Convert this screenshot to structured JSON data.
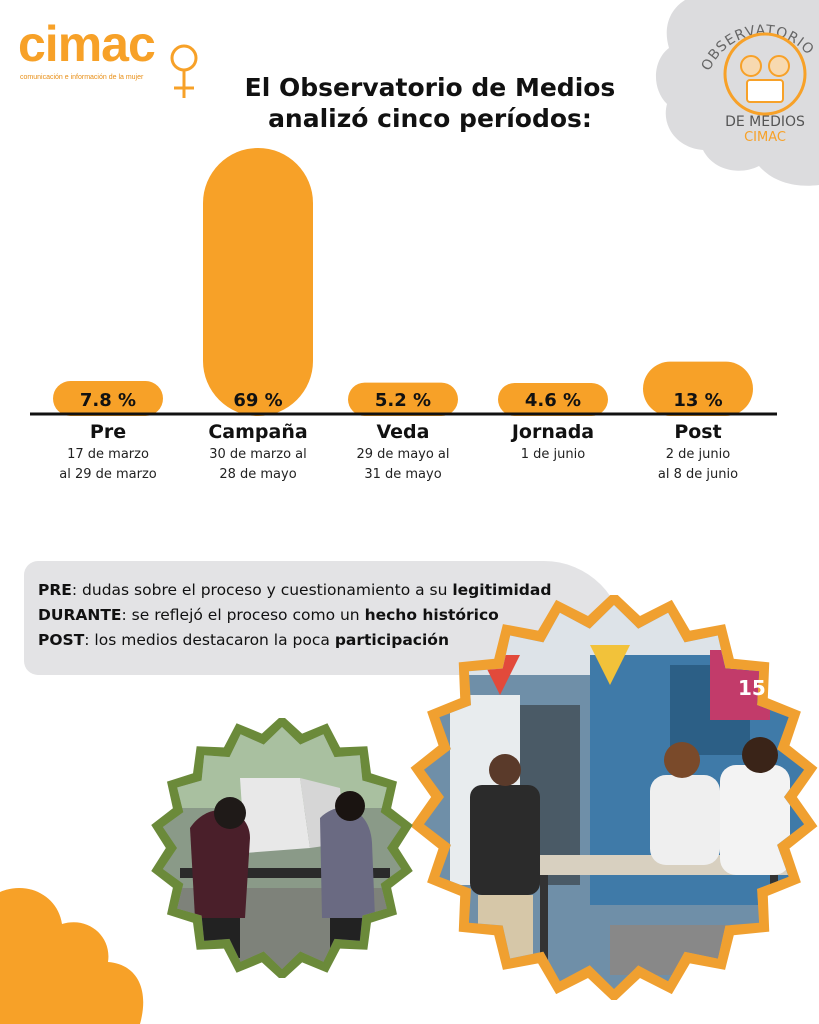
{
  "logo": {
    "name": "cimac",
    "tagline": "comunicación e información de la mujer"
  },
  "title": {
    "line1": "El Observatorio de Medios",
    "line2": "analizó cinco períodos:"
  },
  "badge": {
    "arc_text": "OBSERVATORIO",
    "line1": "DE MEDIOS",
    "line2": "CIMAC"
  },
  "chart_data": {
    "type": "bar",
    "categories": [
      "Pre",
      "Campaña",
      "Veda",
      "Jornada",
      "Post"
    ],
    "values": [
      7.8,
      69,
      5.2,
      4.6,
      13
    ],
    "value_labels": [
      "7.8 %",
      "69 %",
      "5.2 %",
      "4.6 %",
      "13 %"
    ],
    "date_ranges": [
      [
        "17 de marzo",
        "al 29 de marzo"
      ],
      [
        "30 de marzo al",
        "28 de mayo"
      ],
      [
        "29 de mayo al",
        "31 de mayo"
      ],
      [
        "1 de junio"
      ],
      [
        "2 de junio",
        "al 8 de junio"
      ]
    ],
    "title": "",
    "ylim": [
      0,
      69
    ],
    "grid": false,
    "legend": "none",
    "color": "#f7a128"
  },
  "statements": {
    "pre_key": "PRE",
    "pre_text": ": dudas sobre el proceso y cuestionamiento a su ",
    "pre_bold": "legitimidad",
    "durante_key": "DURANTE",
    "durante_text": ": se reflejó el proceso como un ",
    "durante_bold": "hecho histórico",
    "post_key": "POST",
    "post_text": ": los medios destacaron la poca ",
    "post_bold": "participación"
  },
  "photos": {
    "right_sign": "15"
  },
  "colors": {
    "accent": "#f7a128",
    "accent_dark": "#e88f17",
    "gray": "#e3e3e5",
    "olive": "#6b8a3a"
  }
}
